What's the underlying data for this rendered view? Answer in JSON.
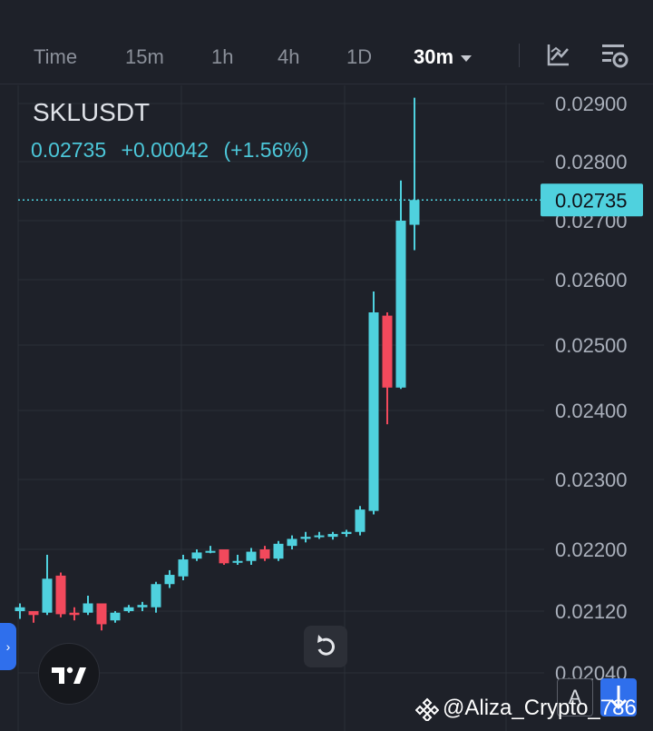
{
  "toolbar": {
    "timeframes": [
      "Time",
      "15m",
      "1h",
      "4h",
      "1D"
    ],
    "active_interval": "30m"
  },
  "header": {
    "symbol": "SKLUSDT",
    "last_price": "0.02735",
    "change": "+0.00042",
    "change_pct": "(+1.56%)"
  },
  "colors": {
    "up": "#4fd1de",
    "down": "#f2495c",
    "bg": "#1e2129",
    "grid": "#2b2f38",
    "accent": "#2f6fec"
  },
  "buttons": {
    "a_label": "A"
  },
  "watermark": "@Aliza_Crypto_786",
  "chart_data": {
    "type": "candlestick",
    "y_tick_labels": [
      "0.02900",
      "0.02800",
      "0.02700",
      "0.02600",
      "0.02500",
      "0.02400",
      "0.02300",
      "0.02200",
      "0.02120",
      "0.02040"
    ],
    "y_ticks": [
      0.029,
      0.028,
      0.027,
      0.026,
      0.025,
      0.024,
      0.023,
      0.022,
      0.0212,
      0.0204
    ],
    "ylim": [
      0.0204,
      0.029
    ],
    "last_price_label": "0.02735",
    "last_price": 0.02735,
    "candles": [
      {
        "o": 0.0212,
        "h": 0.0213,
        "l": 0.0211,
        "c": 0.02125
      },
      {
        "o": 0.0212,
        "h": 0.0212,
        "l": 0.02105,
        "c": 0.02115
      },
      {
        "o": 0.02118,
        "h": 0.02193,
        "l": 0.02115,
        "c": 0.02162
      },
      {
        "o": 0.02166,
        "h": 0.0217,
        "l": 0.02112,
        "c": 0.02116
      },
      {
        "o": 0.02118,
        "h": 0.02125,
        "l": 0.02108,
        "c": 0.02115
      },
      {
        "o": 0.02118,
        "h": 0.0214,
        "l": 0.02115,
        "c": 0.0213
      },
      {
        "o": 0.0213,
        "h": 0.0213,
        "l": 0.02095,
        "c": 0.02103
      },
      {
        "o": 0.02108,
        "h": 0.0212,
        "l": 0.02105,
        "c": 0.02118
      },
      {
        "o": 0.0212,
        "h": 0.02128,
        "l": 0.02118,
        "c": 0.02125
      },
      {
        "o": 0.02125,
        "h": 0.02132,
        "l": 0.0212,
        "c": 0.02128
      },
      {
        "o": 0.02125,
        "h": 0.02158,
        "l": 0.02118,
        "c": 0.02155
      },
      {
        "o": 0.02155,
        "h": 0.02173,
        "l": 0.0215,
        "c": 0.02167
      },
      {
        "o": 0.02165,
        "h": 0.02193,
        "l": 0.0216,
        "c": 0.02187
      },
      {
        "o": 0.02188,
        "h": 0.022,
        "l": 0.02185,
        "c": 0.02196
      },
      {
        "o": 0.02198,
        "h": 0.02205,
        "l": 0.02195,
        "c": 0.02198
      },
      {
        "o": 0.022,
        "h": 0.022,
        "l": 0.0218,
        "c": 0.02182
      },
      {
        "o": 0.02185,
        "h": 0.02193,
        "l": 0.0218,
        "c": 0.02185
      },
      {
        "o": 0.02185,
        "h": 0.02202,
        "l": 0.0218,
        "c": 0.02197
      },
      {
        "o": 0.022,
        "h": 0.02205,
        "l": 0.02185,
        "c": 0.02188
      },
      {
        "o": 0.02188,
        "h": 0.02212,
        "l": 0.02185,
        "c": 0.02208
      },
      {
        "o": 0.02205,
        "h": 0.0222,
        "l": 0.022,
        "c": 0.02215
      },
      {
        "o": 0.02215,
        "h": 0.02225,
        "l": 0.0221,
        "c": 0.02218
      },
      {
        "o": 0.02218,
        "h": 0.02225,
        "l": 0.02215,
        "c": 0.0222
      },
      {
        "o": 0.02218,
        "h": 0.02225,
        "l": 0.02214,
        "c": 0.02222
      },
      {
        "o": 0.02222,
        "h": 0.02228,
        "l": 0.02218,
        "c": 0.02225
      },
      {
        "o": 0.02225,
        "h": 0.02262,
        "l": 0.0222,
        "c": 0.02257
      },
      {
        "o": 0.02255,
        "h": 0.02582,
        "l": 0.0225,
        "c": 0.0255
      },
      {
        "o": 0.02545,
        "h": 0.0255,
        "l": 0.0238,
        "c": 0.02435
      },
      {
        "o": 0.02435,
        "h": 0.02768,
        "l": 0.02433,
        "c": 0.027
      },
      {
        "o": 0.02693,
        "h": 0.0291,
        "l": 0.0265,
        "c": 0.02735
      }
    ]
  }
}
